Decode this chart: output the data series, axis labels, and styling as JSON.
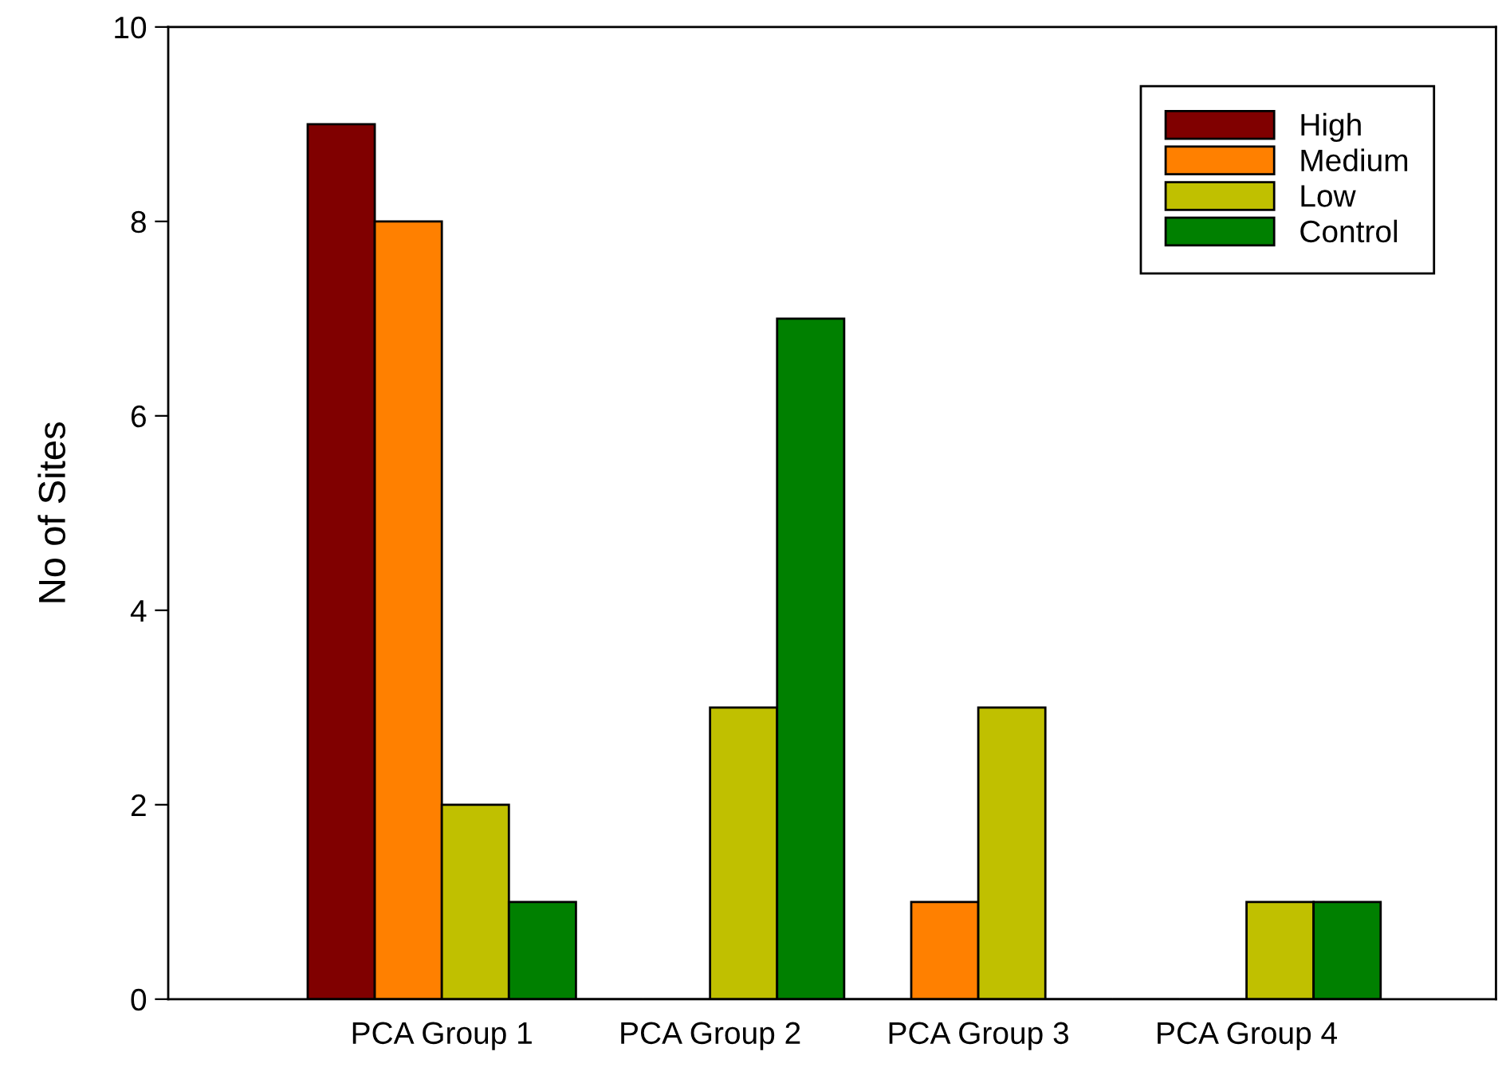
{
  "chart_data": {
    "type": "bar",
    "ylabel": "No of Sites",
    "categories": [
      "PCA Group 1",
      "PCA Group 2",
      "PCA Group 3",
      "PCA Group 4"
    ],
    "series": [
      {
        "name": "High",
        "color": "#800000",
        "values": [
          9,
          0,
          0,
          0
        ]
      },
      {
        "name": "Medium",
        "color": "#ff8000",
        "values": [
          8,
          0,
          1,
          0
        ]
      },
      {
        "name": "Low",
        "color": "#c0c000",
        "values": [
          2,
          3,
          3,
          1
        ]
      },
      {
        "name": "Control",
        "color": "#008000",
        "values": [
          1,
          7,
          0,
          1
        ]
      }
    ],
    "ylim": [
      0,
      10
    ],
    "yticks": [
      0,
      2,
      4,
      6,
      8,
      10
    ],
    "grid": false,
    "legend": "top right"
  }
}
